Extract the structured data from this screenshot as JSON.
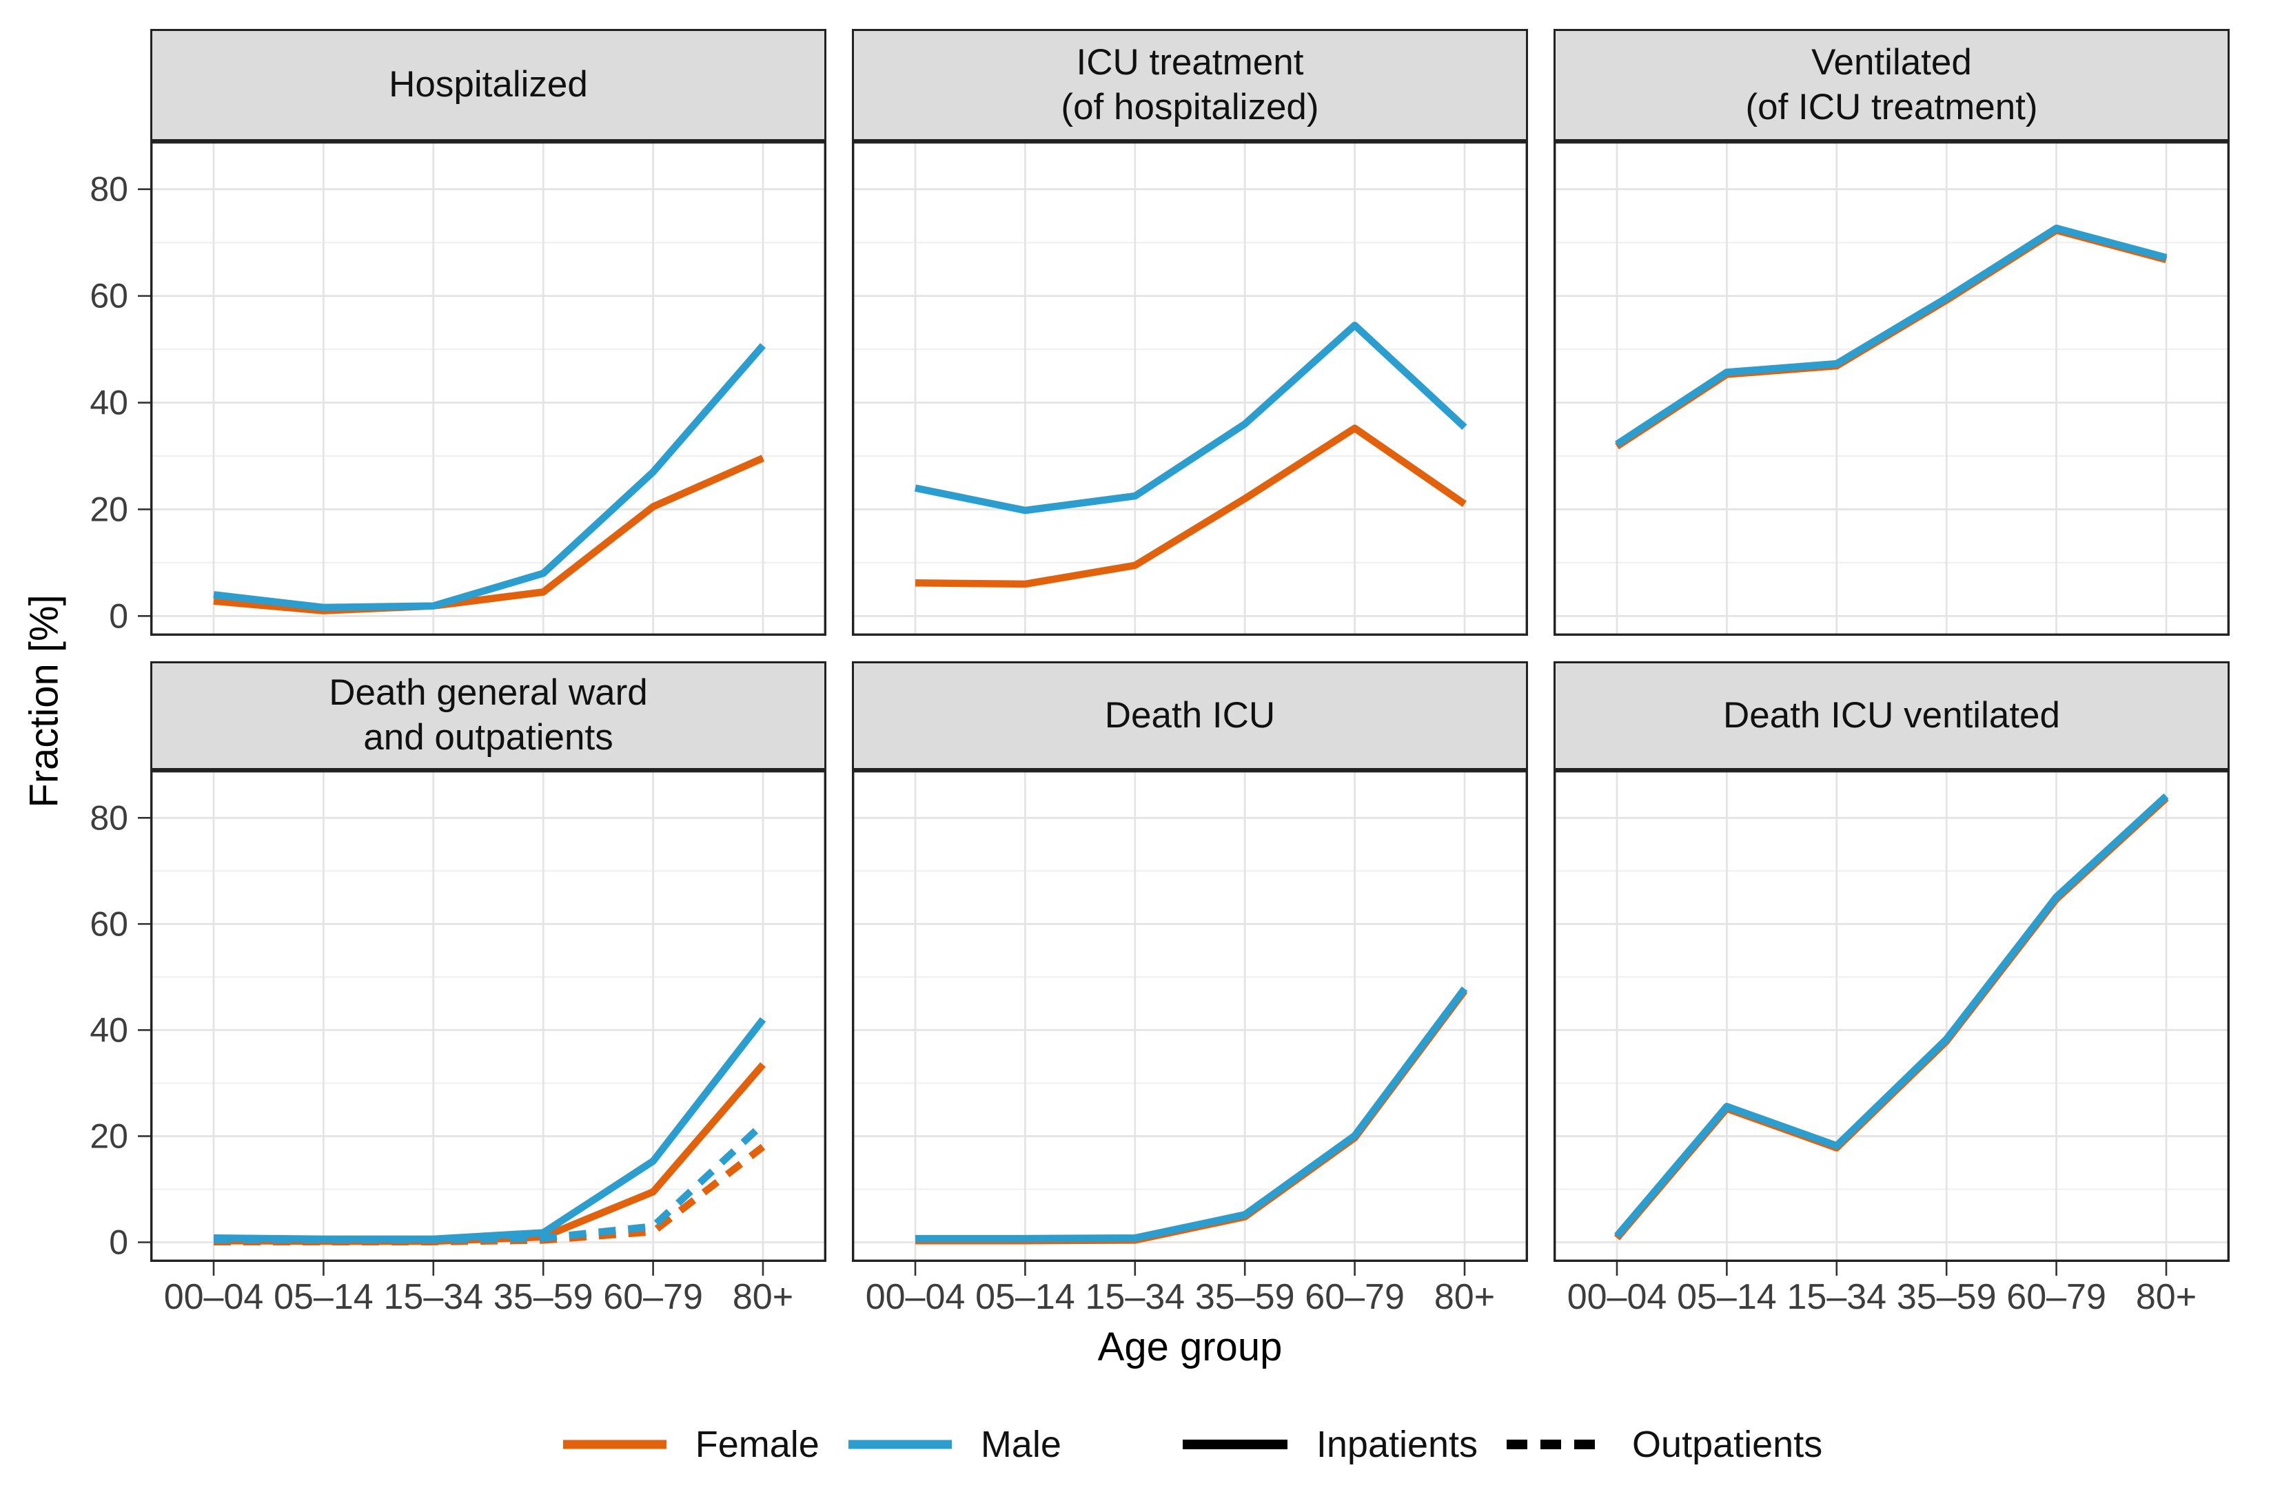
{
  "figure": {
    "background": "#FFFFFF"
  },
  "axes": {
    "y_label": "Fraction [%]",
    "x_label": "Age group",
    "y_ticks": [
      0,
      20,
      40,
      60,
      80
    ],
    "y_minor_ticks": [
      10,
      30,
      50,
      70
    ],
    "categories": [
      "00–04",
      "05–14",
      "15–34",
      "35–59",
      "60–79",
      "80+"
    ]
  },
  "style": {
    "female_color": "#E2610D",
    "male_color": "#2B9DCE",
    "line_black": "#000000",
    "strip_fill": "#DCDCDC",
    "panel_border": "#222222",
    "grid_major": "#E4E4E4",
    "grid_minor": "#F0F0F0",
    "tick_color": "#333333"
  },
  "legend": {
    "items": [
      {
        "label": "Female",
        "color": "#E2610D",
        "dash": "solid"
      },
      {
        "label": "Male",
        "color": "#2B9DCE",
        "dash": "solid"
      },
      {
        "label": "Inpatients",
        "color": "#000000",
        "dash": "solid"
      },
      {
        "label": "Outpatients",
        "color": "#000000",
        "dash": "dashed"
      }
    ]
  },
  "chart_data": {
    "type": "line",
    "categories": [
      "00–04",
      "05–14",
      "15–34",
      "35–59",
      "60–79",
      "80+"
    ],
    "xlabel": "Age group",
    "ylabel": "Fraction [%]",
    "ylim": [
      -3.7,
      89
    ],
    "y_ticks": [
      0,
      20,
      40,
      60,
      80
    ],
    "y_minor_ticks": [
      10,
      30,
      50,
      70
    ],
    "grid": true,
    "legend_position": "bottom",
    "facets": [
      {
        "id": "hospitalized",
        "title": "Hospitalized",
        "series": [
          {
            "name": "Female inpatients",
            "sex": "Female",
            "group": "Inpatients",
            "color": "#E2610D",
            "dash": "solid",
            "values": [
              2.8,
              1.0,
              1.9,
              4.5,
              20.5,
              29.6
            ]
          },
          {
            "name": "Male inpatients",
            "sex": "Male",
            "group": "Inpatients",
            "color": "#2B9DCE",
            "dash": "solid",
            "values": [
              4.0,
              1.6,
              1.9,
              8.0,
              27.0,
              50.7
            ]
          }
        ]
      },
      {
        "id": "icu-treatment",
        "title": "ICU treatment\n(of hospitalized)",
        "series": [
          {
            "name": "Female inpatients",
            "sex": "Female",
            "group": "Inpatients",
            "color": "#E2610D",
            "dash": "solid",
            "values": [
              6.2,
              6.0,
              9.5,
              22.0,
              35.2,
              21.0
            ]
          },
          {
            "name": "Male inpatients",
            "sex": "Male",
            "group": "Inpatients",
            "color": "#2B9DCE",
            "dash": "solid",
            "values": [
              24.0,
              19.8,
              22.5,
              36.0,
              54.5,
              35.4
            ]
          }
        ]
      },
      {
        "id": "ventilated",
        "title": "Ventilated\n(of ICU treatment)",
        "series": [
          {
            "name": "Female inpatients",
            "sex": "Female",
            "group": "Inpatients",
            "color": "#E2610D",
            "dash": "solid",
            "values": [
              31.8,
              45.3,
              46.9,
              59.2,
              72.3,
              66.8
            ]
          },
          {
            "name": "Male inpatients",
            "sex": "Male",
            "group": "Inpatients",
            "color": "#2B9DCE",
            "dash": "solid",
            "values": [
              32.2,
              45.7,
              47.3,
              59.6,
              72.7,
              67.2
            ]
          }
        ]
      },
      {
        "id": "death-general-ward",
        "title": "Death general ward\nand outpatients",
        "series": [
          {
            "name": "Female inpatients",
            "sex": "Female",
            "group": "Inpatients",
            "color": "#E2610D",
            "dash": "solid",
            "values": [
              0.3,
              0.2,
              0.2,
              1.0,
              9.5,
              33.5
            ]
          },
          {
            "name": "Male inpatients",
            "sex": "Male",
            "group": "Inpatients",
            "color": "#2B9DCE",
            "dash": "solid",
            "values": [
              0.8,
              0.6,
              0.6,
              1.8,
              15.3,
              42.0
            ]
          },
          {
            "name": "Female outpatients",
            "sex": "Female",
            "group": "Outpatients",
            "color": "#E2610D",
            "dash": "dashed",
            "values": [
              0.1,
              0.1,
              0.1,
              0.4,
              2.0,
              18.0
            ]
          },
          {
            "name": "Male outpatients",
            "sex": "Male",
            "group": "Outpatients",
            "color": "#2B9DCE",
            "dash": "dashed",
            "values": [
              0.5,
              0.5,
              0.5,
              0.8,
              3.0,
              22.3
            ]
          }
        ]
      },
      {
        "id": "death-icu",
        "title": "Death ICU",
        "series": [
          {
            "name": "Female inpatients",
            "sex": "Female",
            "group": "Inpatients",
            "color": "#E2610D",
            "dash": "solid",
            "values": [
              0.3,
              0.3,
              0.4,
              4.8,
              19.7,
              47.4
            ]
          },
          {
            "name": "Male inpatients",
            "sex": "Male",
            "group": "Inpatients",
            "color": "#2B9DCE",
            "dash": "solid",
            "values": [
              0.7,
              0.7,
              0.8,
              5.2,
              20.1,
              47.8
            ]
          }
        ]
      },
      {
        "id": "death-icu-ventilated",
        "title": "Death ICU ventilated",
        "series": [
          {
            "name": "Female inpatients",
            "sex": "Female",
            "group": "Inpatients",
            "color": "#E2610D",
            "dash": "solid",
            "values": [
              0.8,
              25.2,
              17.8,
              37.9,
              64.7,
              83.7
            ]
          },
          {
            "name": "Male inpatients",
            "sex": "Male",
            "group": "Inpatients",
            "color": "#2B9DCE",
            "dash": "solid",
            "values": [
              1.2,
              25.6,
              18.2,
              38.3,
              65.1,
              84.1
            ]
          }
        ]
      }
    ]
  }
}
